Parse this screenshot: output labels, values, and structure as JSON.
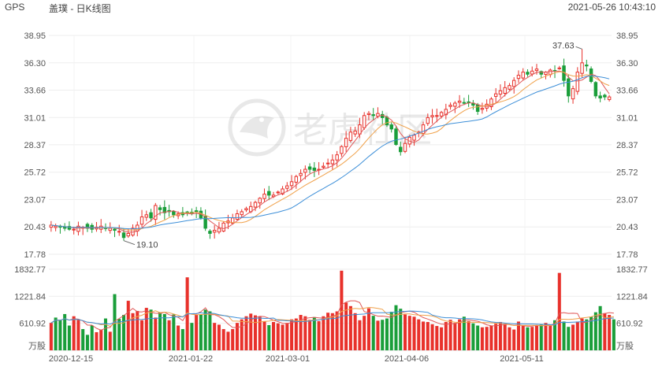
{
  "header": {
    "symbol": "GPS",
    "name": "盖璞 - 日K线图",
    "datetime": "2021-05-26 10:43:10"
  },
  "watermark": {
    "text": "老虎社区",
    "icon": "tiger-logo-icon"
  },
  "colors": {
    "up": "#e8312b",
    "down": "#1a9e3a",
    "ma5": "#e05858",
    "ma10": "#f0a14a",
    "ma20": "#3d8fd8",
    "grid": "#eeeeee"
  },
  "chart_data": [
    {
      "type": "candlestick",
      "title": "",
      "y_ticks": [
        "38.95",
        "36.30",
        "33.66",
        "31.01",
        "28.37",
        "25.72",
        "23.07",
        "20.43",
        "17.78"
      ],
      "ylim": [
        17.78,
        38.95
      ],
      "x_ticks": [
        "2020-12-15",
        "2021-01-22",
        "2021-03-01",
        "2021-04-06",
        "2021-05-11"
      ],
      "annotations": {
        "high_label": "37.63",
        "low_label": "19.10"
      },
      "close": [
        20.6,
        20.5,
        20.4,
        20.3,
        20.2,
        20.2,
        20.5,
        20.4,
        20.3,
        20.2,
        20.4,
        20.5,
        20.3,
        20.3,
        20.1,
        20.0,
        19.4,
        19.8,
        20.3,
        20.6,
        21.4,
        21.6,
        21.3,
        22.5,
        22.1,
        21.8,
        21.9,
        21.6,
        21.7,
        21.6,
        21.8,
        21.7,
        21.9,
        21.3,
        20.3,
        19.8,
        20.1,
        20.3,
        20.8,
        21.0,
        21.3,
        21.7,
        21.9,
        22.2,
        22.4,
        22.8,
        23.2,
        23.6,
        23.5,
        23.5,
        23.8,
        24.1,
        24.4,
        24.8,
        25.3,
        25.6,
        26.0,
        26.0,
        25.9,
        26.0,
        26.3,
        26.6,
        26.9,
        27.4,
        28.2,
        29.0,
        29.6,
        29.7,
        30.3,
        31.2,
        31.4,
        31.2,
        31.4,
        31.0,
        30.3,
        29.9,
        28.4,
        27.7,
        28.5,
        29.1,
        29.3,
        29.6,
        30.3,
        31.0,
        31.2,
        31.2,
        31.5,
        31.8,
        32.2,
        32.4,
        32.6,
        32.4,
        32.5,
        32.2,
        31.6,
        31.9,
        32.3,
        32.8,
        33.3,
        33.6,
        33.9,
        34.1,
        34.6,
        35.1,
        35.4,
        35.2,
        35.5,
        35.7,
        35.2,
        35.4,
        35.6,
        35.5,
        35.8,
        34.6,
        33.1,
        33.8,
        35.4,
        36.3,
        36.0,
        34.5,
        33.1,
        32.9,
        33.0,
        33.0
      ],
      "high": 37.63,
      "low": 19.1,
      "ma_series": [
        {
          "name": "",
          "color_key": "ma5"
        },
        {
          "name": "",
          "color_key": "ma10"
        },
        {
          "name": "",
          "color_key": "ma20"
        }
      ]
    },
    {
      "type": "bar",
      "title": "",
      "unit_label": "万股",
      "y_ticks": [
        "1832.77",
        "1221.84",
        "610.92"
      ],
      "ylim": [
        0,
        1832.77
      ],
      "values": [
        620,
        740,
        680,
        820,
        560,
        770,
        690,
        480,
        350,
        560,
        410,
        470,
        720,
        420,
        1270,
        710,
        800,
        1120,
        840,
        890,
        680,
        960,
        920,
        740,
        860,
        820,
        680,
        810,
        560,
        480,
        1650,
        620,
        800,
        810,
        920,
        880,
        620,
        580,
        480,
        420,
        480,
        620,
        700,
        770,
        830,
        790,
        760,
        660,
        570,
        640,
        610,
        580,
        620,
        700,
        720,
        800,
        770,
        690,
        750,
        660,
        770,
        850,
        840,
        880,
        1800,
        1080,
        1000,
        840,
        680,
        780,
        950,
        780,
        670,
        690,
        720,
        870,
        1020,
        940,
        810,
        780,
        760,
        700,
        650,
        640,
        590,
        550,
        520,
        640,
        690,
        620,
        700,
        760,
        660,
        610,
        560,
        520,
        530,
        560,
        600,
        640,
        590,
        520,
        470,
        650,
        560,
        520,
        530,
        570,
        580,
        620,
        560,
        680,
        1750,
        650,
        530,
        580,
        650,
        720,
        700,
        760,
        860,
        1000,
        840,
        800,
        700
      ]
    }
  ]
}
